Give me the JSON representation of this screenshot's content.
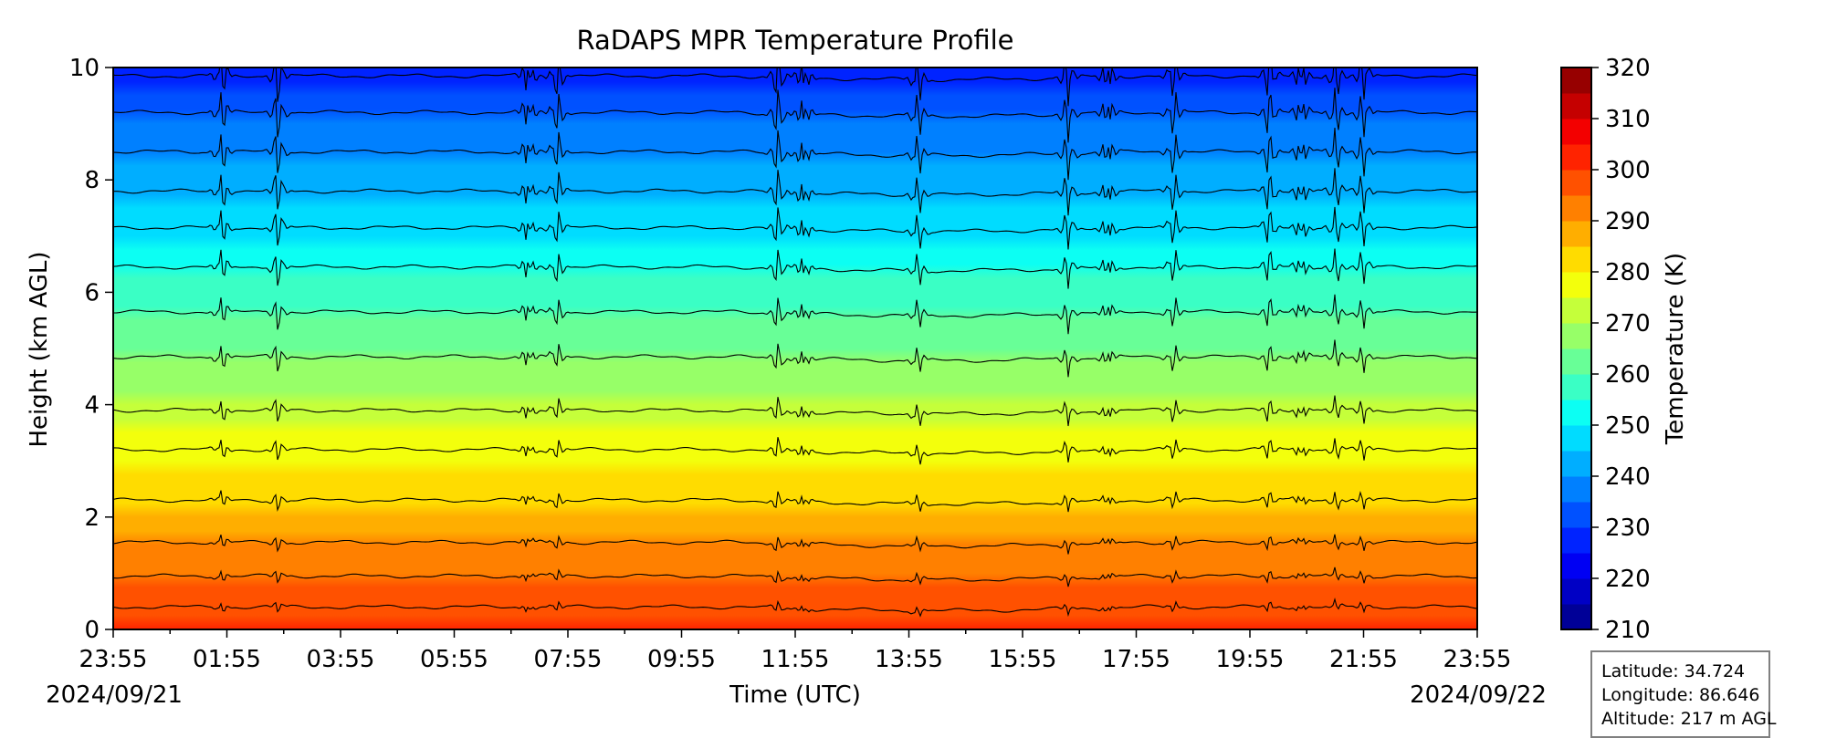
{
  "chart_data": {
    "type": "heatmap",
    "title": "RaDAPS MPR Temperature Profile",
    "xlabel": "Time (UTC)",
    "ylabel": "Height (km AGL)",
    "x_ticks": [
      "23:55",
      "01:55",
      "03:55",
      "05:55",
      "07:55",
      "09:55",
      "11:55",
      "13:55",
      "15:55",
      "17:55",
      "19:55",
      "21:55",
      "23:55"
    ],
    "x_range_hours": [
      0,
      24
    ],
    "y_ticks": [
      "0",
      "2",
      "4",
      "6",
      "8",
      "10"
    ],
    "y_range_km": [
      0,
      10
    ],
    "start_date": "2024/09/21",
    "end_date": "2024/09/22",
    "colorbar": {
      "label": "Temperature (K)",
      "ticks": [
        "210",
        "220",
        "230",
        "240",
        "250",
        "260",
        "270",
        "280",
        "290",
        "300",
        "310",
        "320"
      ],
      "range": [
        210,
        320
      ],
      "colormap": "jet",
      "levels": 22
    },
    "contour_levels_height_km": [
      0.4,
      0.95,
      1.55,
      2.3,
      3.2,
      3.9,
      4.85,
      5.65,
      6.45,
      7.15,
      7.8,
      8.5,
      9.2,
      9.85
    ],
    "disturbance_times_hours": [
      1.9,
      2.9,
      7.3,
      7.8,
      11.7,
      12.15,
      14.15,
      16.8,
      17.5,
      18.65,
      20.35,
      20.9,
      21.5,
      22.0
    ],
    "surface_temperature_K": 301,
    "top_temperature_K": 228
  },
  "station": {
    "latitude": "Latitude: 34.724",
    "longitude": "Longitude: 86.646",
    "altitude": "Altitude: 217 m AGL"
  }
}
